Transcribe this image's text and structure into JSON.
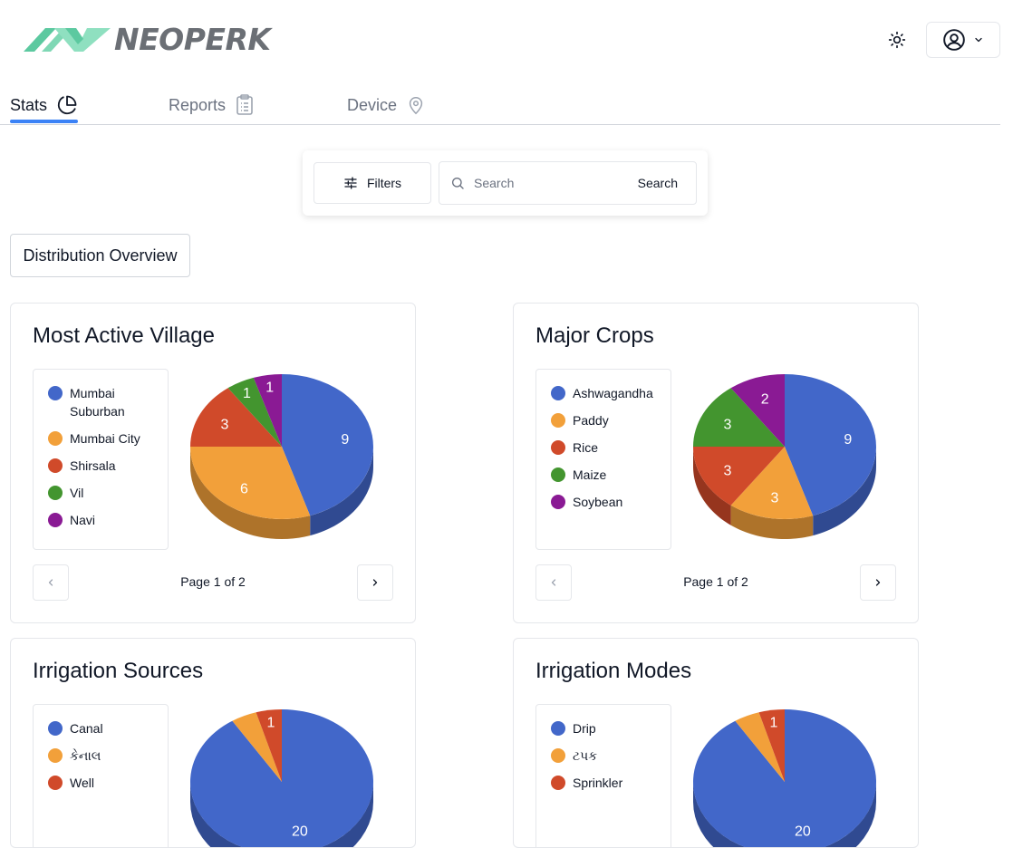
{
  "brand": {
    "name": "NEOPERK",
    "colors": {
      "mark": "#5cc9a0",
      "text": "#6b6f75"
    }
  },
  "header": {
    "theme_icon": "sun-icon",
    "user_icon": "user-circle-icon"
  },
  "tabs": [
    {
      "label": "Stats",
      "icon": "pie-chart-icon",
      "active": true
    },
    {
      "label": "Reports",
      "icon": "clipboard-icon",
      "active": false
    },
    {
      "label": "Device",
      "icon": "map-pin-icon",
      "active": false
    }
  ],
  "search": {
    "filters_label": "Filters",
    "placeholder": "Search",
    "submit_label": "Search"
  },
  "distribution_label": "Distribution Overview",
  "palette": {
    "blue": "#4267c9",
    "orange": "#f2a03a",
    "red": "#d04a2a",
    "green": "#43952f",
    "purple": "#8a1a94",
    "accent": "#3b82f6"
  },
  "cards": [
    {
      "title": "Most Active Village",
      "pager": "Page 1 of 2",
      "legend": [
        {
          "label": "Mumbai Suburban",
          "color": "#4267c9"
        },
        {
          "label": "Mumbai City",
          "color": "#f2a03a"
        },
        {
          "label": "Shirsala",
          "color": "#d04a2a"
        },
        {
          "label": "Vil",
          "color": "#43952f"
        },
        {
          "label": "Navi",
          "color": "#8a1a94"
        }
      ],
      "chart_data": {
        "type": "pie",
        "title": "Most Active Village",
        "labels": [
          "Mumbai Suburban",
          "Mumbai City",
          "Shirsala",
          "Vil",
          "Navi"
        ],
        "values": [
          9,
          6,
          3,
          1,
          1
        ],
        "colors": [
          "#4267c9",
          "#f2a03a",
          "#d04a2a",
          "#43952f",
          "#8a1a94"
        ]
      }
    },
    {
      "title": "Major Crops",
      "pager": "Page 1 of 2",
      "legend": [
        {
          "label": "Ashwagandha",
          "color": "#4267c9"
        },
        {
          "label": "Paddy",
          "color": "#f2a03a"
        },
        {
          "label": "Rice",
          "color": "#d04a2a"
        },
        {
          "label": "Maize",
          "color": "#43952f"
        },
        {
          "label": "Soybean",
          "color": "#8a1a94"
        }
      ],
      "chart_data": {
        "type": "pie",
        "title": "Major Crops",
        "labels": [
          "Ashwagandha",
          "Paddy",
          "Rice",
          "Maize",
          "Soybean"
        ],
        "values": [
          9,
          3,
          3,
          3,
          2
        ],
        "colors": [
          "#4267c9",
          "#f2a03a",
          "#d04a2a",
          "#43952f",
          "#8a1a94"
        ]
      }
    },
    {
      "title": "Irrigation Sources",
      "pager": "",
      "legend": [
        {
          "label": "Canal",
          "color": "#4267c9"
        },
        {
          "label": "કેનાલ",
          "color": "#f2a03a"
        },
        {
          "label": "Well",
          "color": "#d04a2a"
        }
      ],
      "chart_data": {
        "type": "pie",
        "title": "Irrigation Sources",
        "labels": [
          "Canal",
          "કેનાલ",
          "Well"
        ],
        "values": [
          20,
          1,
          1
        ],
        "colors": [
          "#4267c9",
          "#f2a03a",
          "#d04a2a"
        ],
        "shown_labels": [
          true,
          false,
          true
        ]
      }
    },
    {
      "title": "Irrigation Modes",
      "pager": "",
      "legend": [
        {
          "label": "Drip",
          "color": "#4267c9"
        },
        {
          "label": "ટપક",
          "color": "#f2a03a"
        },
        {
          "label": "Sprinkler",
          "color": "#d04a2a"
        }
      ],
      "chart_data": {
        "type": "pie",
        "title": "Irrigation Modes",
        "labels": [
          "Drip",
          "ટપક",
          "Sprinkler"
        ],
        "values": [
          20,
          1,
          1
        ],
        "colors": [
          "#4267c9",
          "#f2a03a",
          "#d04a2a"
        ],
        "shown_labels": [
          true,
          false,
          true
        ]
      }
    }
  ]
}
